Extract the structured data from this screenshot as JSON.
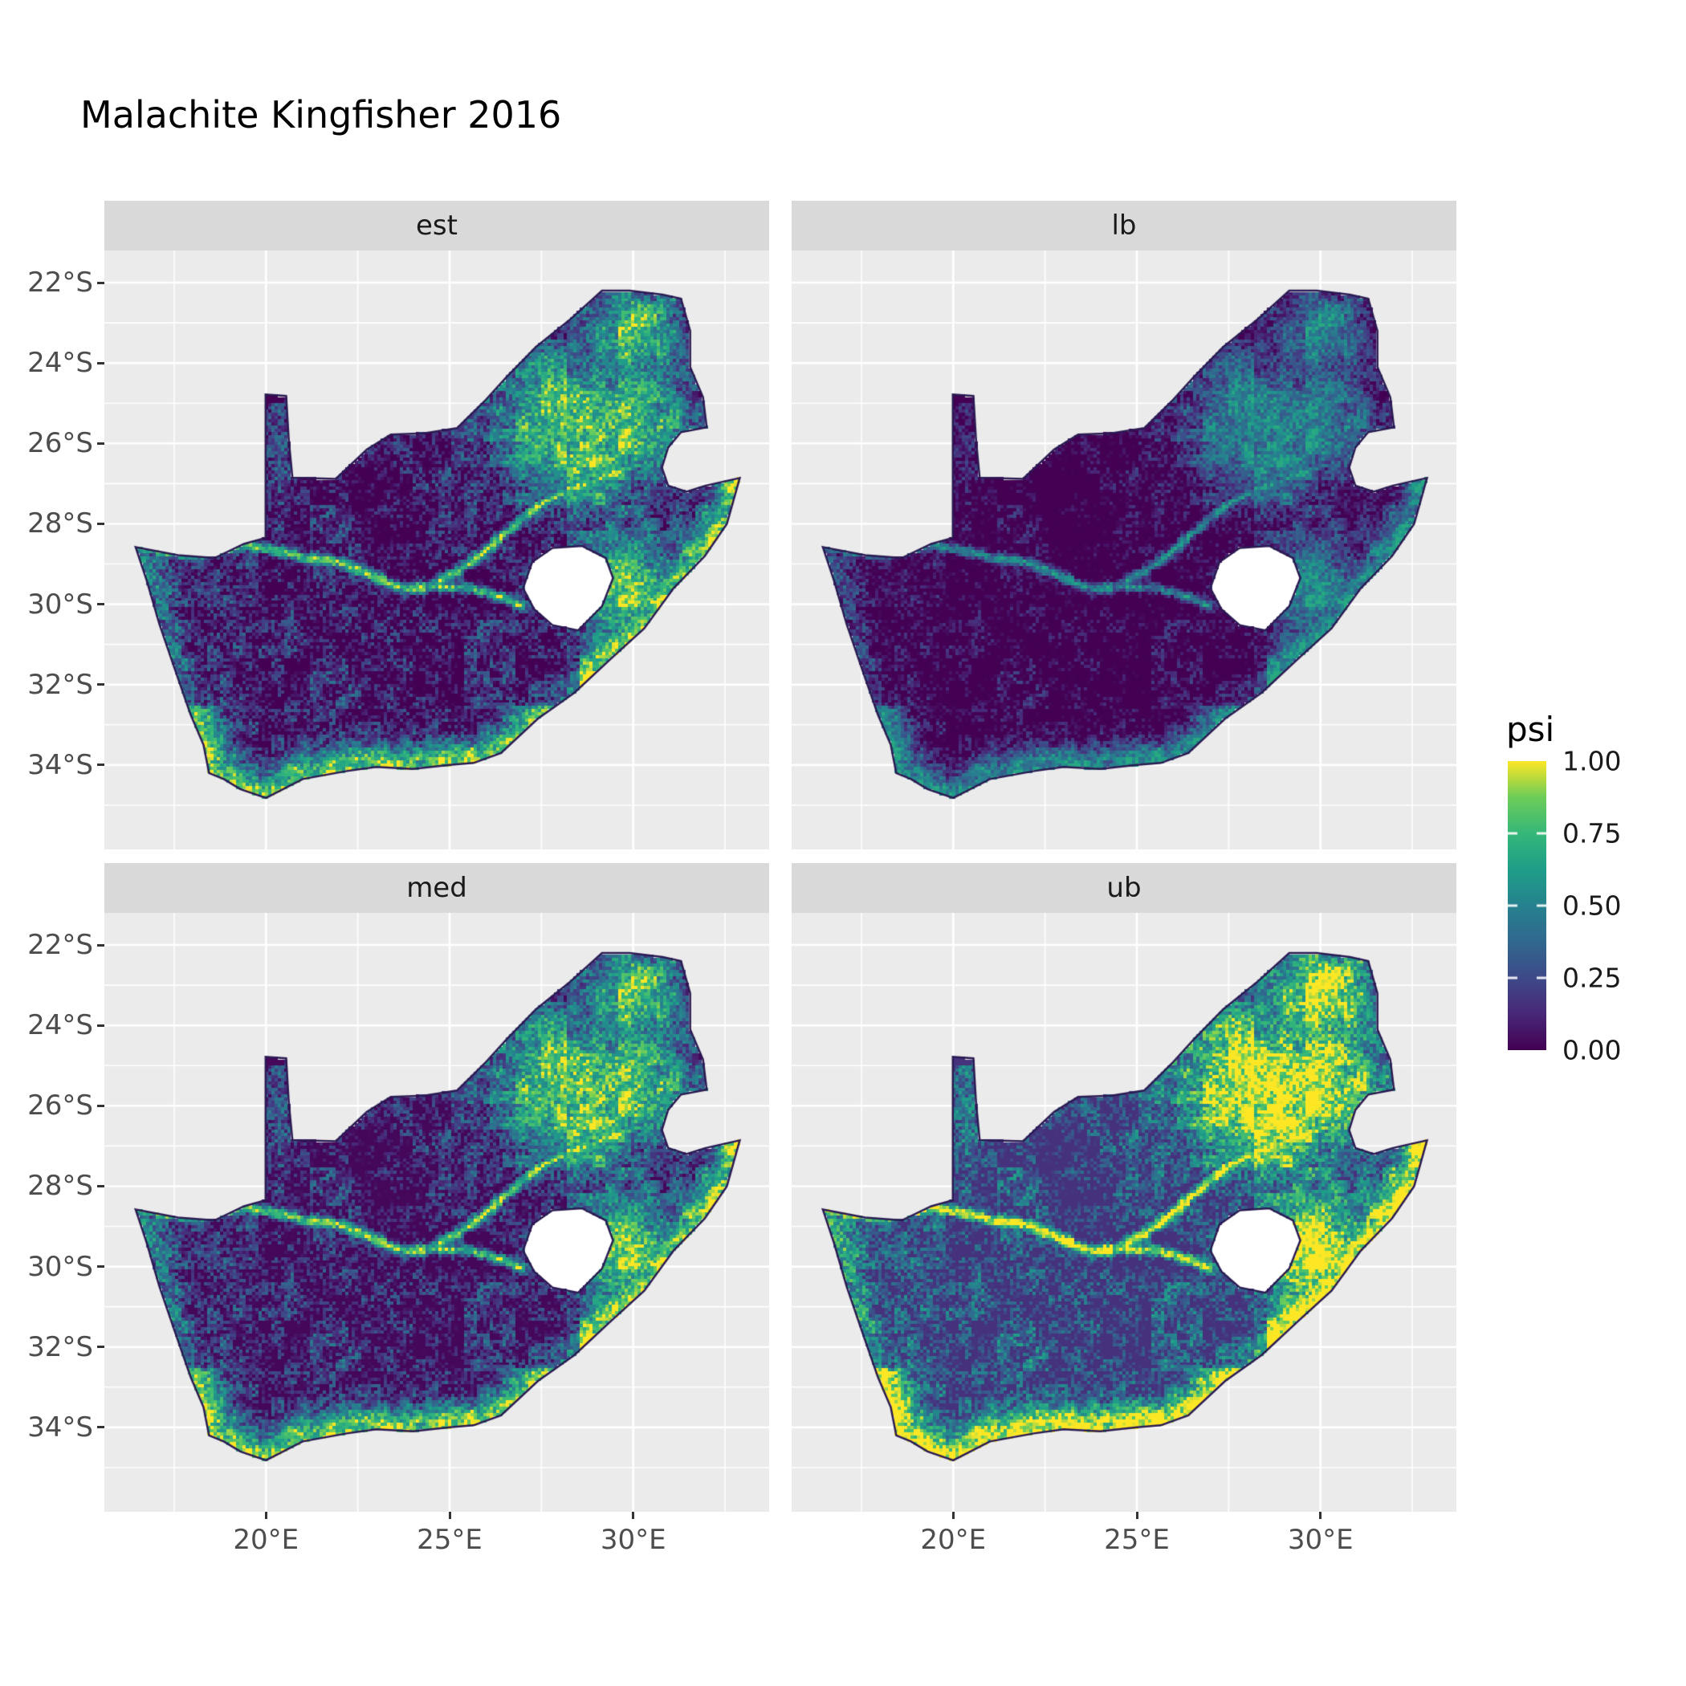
{
  "title": "Malachite Kingfisher 2016",
  "legend": {
    "title": "psi",
    "ticks": [
      {
        "value": 1.0,
        "label": "1.00"
      },
      {
        "value": 0.75,
        "label": "0.75"
      },
      {
        "value": 0.5,
        "label": "0.50"
      },
      {
        "value": 0.25,
        "label": "0.25"
      },
      {
        "value": 0.0,
        "label": "0.00"
      }
    ]
  },
  "colors": {
    "panel_bg": "#EBEBEB",
    "strip_bg": "#D9D9D9",
    "grid_major": "#FFFFFF",
    "grid_minor": "#FFFFFF",
    "axis_text": "#4D4D4D",
    "strip_text": "#1A1A1A",
    "title_text": "#000000",
    "na_hole": "#FFFFFF",
    "map_border": "#2A1A52"
  },
  "chart_data": {
    "type": "heatmap",
    "subtype": "faceted-raster-occupancy-map",
    "title": "Malachite Kingfisher 2016",
    "fill_variable": "psi",
    "fill_range": [
      0,
      1
    ],
    "facets": [
      {
        "id": "est",
        "label": "est",
        "gain": 1.0,
        "offset": 0.0
      },
      {
        "id": "lb",
        "label": "lb",
        "gain": 0.78,
        "offset": -0.1
      },
      {
        "id": "med",
        "label": "med",
        "gain": 1.02,
        "offset": 0.02
      },
      {
        "id": "ub",
        "label": "ub",
        "gain": 1.1,
        "offset": 0.16
      }
    ],
    "x_axis": {
      "range": [
        15.6,
        33.7
      ],
      "ticks": [
        {
          "value": 20,
          "label": "20°E"
        },
        {
          "value": 25,
          "label": "25°E"
        },
        {
          "value": 30,
          "label": "30°E"
        }
      ]
    },
    "y_axis": {
      "range": [
        -36.1,
        -21.2
      ],
      "ticks": [
        {
          "value": -22,
          "label": "22°S"
        },
        {
          "value": -24,
          "label": "24°S"
        },
        {
          "value": -26,
          "label": "26°S"
        },
        {
          "value": -28,
          "label": "28°S"
        },
        {
          "value": -30,
          "label": "30°S"
        },
        {
          "value": -32,
          "label": "32°S"
        },
        {
          "value": -34,
          "label": "34°S"
        }
      ]
    },
    "colormap": {
      "name": "viridis",
      "stops": [
        {
          "t": 0.0,
          "color": "#440154"
        },
        {
          "t": 0.125,
          "color": "#482878"
        },
        {
          "t": 0.25,
          "color": "#3E4A89"
        },
        {
          "t": 0.375,
          "color": "#31688E"
        },
        {
          "t": 0.5,
          "color": "#26828E"
        },
        {
          "t": 0.625,
          "color": "#1F9E89"
        },
        {
          "t": 0.75,
          "color": "#35B779"
        },
        {
          "t": 0.875,
          "color": "#6DCD59"
        },
        {
          "t": 1.0,
          "color": "#FDE725"
        }
      ]
    },
    "region_outline": [
      [
        16.45,
        -28.58
      ],
      [
        17.6,
        -28.78
      ],
      [
        18.6,
        -28.85
      ],
      [
        19.4,
        -28.5
      ],
      [
        19.99,
        -28.35
      ],
      [
        19.99,
        -24.78
      ],
      [
        20.55,
        -24.82
      ],
      [
        20.62,
        -25.9
      ],
      [
        20.72,
        -26.85
      ],
      [
        21.9,
        -26.88
      ],
      [
        22.75,
        -26.15
      ],
      [
        23.4,
        -25.78
      ],
      [
        24.3,
        -25.75
      ],
      [
        25.2,
        -25.62
      ],
      [
        25.95,
        -24.95
      ],
      [
        26.55,
        -24.35
      ],
      [
        27.35,
        -23.6
      ],
      [
        28.3,
        -22.9
      ],
      [
        29.15,
        -22.2
      ],
      [
        29.9,
        -22.2
      ],
      [
        30.8,
        -22.3
      ],
      [
        31.3,
        -22.4
      ],
      [
        31.55,
        -23.2
      ],
      [
        31.55,
        -24.1
      ],
      [
        31.9,
        -24.85
      ],
      [
        32.0,
        -25.6
      ],
      [
        31.3,
        -25.72
      ],
      [
        30.95,
        -26.1
      ],
      [
        30.78,
        -26.6
      ],
      [
        30.95,
        -27.05
      ],
      [
        31.45,
        -27.2
      ],
      [
        31.97,
        -27.05
      ],
      [
        32.9,
        -26.86
      ],
      [
        32.55,
        -28.0
      ],
      [
        31.95,
        -28.8
      ],
      [
        31.1,
        -29.6
      ],
      [
        30.3,
        -30.6
      ],
      [
        29.4,
        -31.35
      ],
      [
        28.4,
        -32.2
      ],
      [
        27.4,
        -32.85
      ],
      [
        26.4,
        -33.7
      ],
      [
        25.65,
        -33.95
      ],
      [
        25.0,
        -34.0
      ],
      [
        24.0,
        -34.1
      ],
      [
        23.0,
        -34.05
      ],
      [
        22.2,
        -34.15
      ],
      [
        21.0,
        -34.35
      ],
      [
        20.0,
        -34.82
      ],
      [
        19.3,
        -34.6
      ],
      [
        18.85,
        -34.35
      ],
      [
        18.45,
        -34.2
      ],
      [
        18.3,
        -33.5
      ],
      [
        17.95,
        -32.75
      ],
      [
        17.55,
        -31.7
      ],
      [
        17.1,
        -30.5
      ],
      [
        16.75,
        -29.4
      ]
    ],
    "hole_outline": [
      [
        27.0,
        -29.6
      ],
      [
        27.25,
        -28.95
      ],
      [
        27.8,
        -28.6
      ],
      [
        28.6,
        -28.55
      ],
      [
        29.25,
        -28.85
      ],
      [
        29.45,
        -29.35
      ],
      [
        29.15,
        -30.05
      ],
      [
        28.5,
        -30.65
      ],
      [
        27.8,
        -30.52
      ],
      [
        27.3,
        -30.12
      ]
    ],
    "coastline": [
      [
        32.9,
        -26.86
      ],
      [
        32.55,
        -28.0
      ],
      [
        31.95,
        -28.8
      ],
      [
        31.1,
        -29.6
      ],
      [
        30.3,
        -30.6
      ],
      [
        29.4,
        -31.35
      ],
      [
        28.4,
        -32.2
      ],
      [
        27.4,
        -32.85
      ],
      [
        26.4,
        -33.7
      ],
      [
        25.65,
        -33.95
      ],
      [
        25.0,
        -34.0
      ],
      [
        24.0,
        -34.1
      ],
      [
        23.0,
        -34.05
      ],
      [
        22.2,
        -34.15
      ],
      [
        21.0,
        -34.35
      ],
      [
        20.0,
        -34.82
      ],
      [
        19.3,
        -34.6
      ],
      [
        18.85,
        -34.35
      ],
      [
        18.45,
        -34.2
      ],
      [
        18.3,
        -33.5
      ],
      [
        17.95,
        -32.75
      ],
      [
        17.55,
        -31.7
      ],
      [
        17.1,
        -30.5
      ],
      [
        16.75,
        -29.4
      ],
      [
        16.45,
        -28.58
      ]
    ],
    "rivers": {
      "orange": [
        [
          16.55,
          -28.6
        ],
        [
          17.5,
          -28.72
        ],
        [
          18.4,
          -28.72
        ],
        [
          19.3,
          -28.5
        ],
        [
          20.2,
          -28.65
        ],
        [
          21.1,
          -28.85
        ],
        [
          22.0,
          -28.95
        ],
        [
          22.9,
          -29.3
        ],
        [
          23.8,
          -29.6
        ],
        [
          24.7,
          -29.55
        ],
        [
          25.6,
          -29.6
        ],
        [
          26.4,
          -29.8
        ],
        [
          27.0,
          -30.1
        ]
      ],
      "vaal": [
        [
          24.3,
          -29.6
        ],
        [
          25.1,
          -29.25
        ],
        [
          25.9,
          -28.75
        ],
        [
          26.7,
          -28.1
        ],
        [
          27.4,
          -27.55
        ],
        [
          28.1,
          -27.2
        ],
        [
          28.9,
          -26.95
        ],
        [
          29.6,
          -26.7
        ]
      ]
    },
    "hotspots": [
      {
        "lon": 28.8,
        "lat": -25.6,
        "sx": 2.8,
        "sy": 2.1,
        "amp": 0.95
      },
      {
        "lon": 29.9,
        "lat": -23.2,
        "sx": 1.7,
        "sy": 1.1,
        "amp": 0.8
      },
      {
        "lon": 29.7,
        "lat": -29.6,
        "sx": 1.25,
        "sy": 1.6,
        "amp": 0.9
      }
    ]
  }
}
